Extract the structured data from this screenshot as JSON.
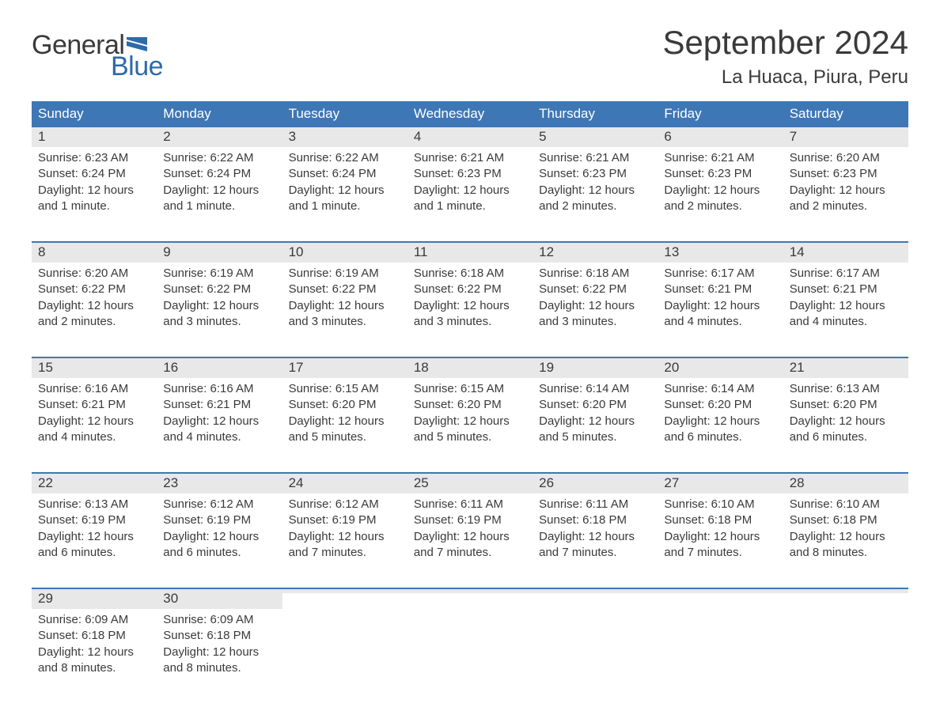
{
  "logo": {
    "part1": "General",
    "part2": "Blue"
  },
  "title": "September 2024",
  "location": "La Huaca, Piura, Peru",
  "colors": {
    "header_bg": "#3e77b5",
    "header_text": "#ffffff",
    "daynum_bg": "#e8e8e8",
    "week_border": "#3e77b5",
    "text": "#3a3a3a",
    "logo_blue": "#2e6aa8",
    "background": "#ffffff"
  },
  "weekdays": [
    "Sunday",
    "Monday",
    "Tuesday",
    "Wednesday",
    "Thursday",
    "Friday",
    "Saturday"
  ],
  "weeks": [
    [
      {
        "n": "1",
        "sr": "Sunrise: 6:23 AM",
        "ss": "Sunset: 6:24 PM",
        "dl1": "Daylight: 12 hours",
        "dl2": "and 1 minute."
      },
      {
        "n": "2",
        "sr": "Sunrise: 6:22 AM",
        "ss": "Sunset: 6:24 PM",
        "dl1": "Daylight: 12 hours",
        "dl2": "and 1 minute."
      },
      {
        "n": "3",
        "sr": "Sunrise: 6:22 AM",
        "ss": "Sunset: 6:24 PM",
        "dl1": "Daylight: 12 hours",
        "dl2": "and 1 minute."
      },
      {
        "n": "4",
        "sr": "Sunrise: 6:21 AM",
        "ss": "Sunset: 6:23 PM",
        "dl1": "Daylight: 12 hours",
        "dl2": "and 1 minute."
      },
      {
        "n": "5",
        "sr": "Sunrise: 6:21 AM",
        "ss": "Sunset: 6:23 PM",
        "dl1": "Daylight: 12 hours",
        "dl2": "and 2 minutes."
      },
      {
        "n": "6",
        "sr": "Sunrise: 6:21 AM",
        "ss": "Sunset: 6:23 PM",
        "dl1": "Daylight: 12 hours",
        "dl2": "and 2 minutes."
      },
      {
        "n": "7",
        "sr": "Sunrise: 6:20 AM",
        "ss": "Sunset: 6:23 PM",
        "dl1": "Daylight: 12 hours",
        "dl2": "and 2 minutes."
      }
    ],
    [
      {
        "n": "8",
        "sr": "Sunrise: 6:20 AM",
        "ss": "Sunset: 6:22 PM",
        "dl1": "Daylight: 12 hours",
        "dl2": "and 2 minutes."
      },
      {
        "n": "9",
        "sr": "Sunrise: 6:19 AM",
        "ss": "Sunset: 6:22 PM",
        "dl1": "Daylight: 12 hours",
        "dl2": "and 3 minutes."
      },
      {
        "n": "10",
        "sr": "Sunrise: 6:19 AM",
        "ss": "Sunset: 6:22 PM",
        "dl1": "Daylight: 12 hours",
        "dl2": "and 3 minutes."
      },
      {
        "n": "11",
        "sr": "Sunrise: 6:18 AM",
        "ss": "Sunset: 6:22 PM",
        "dl1": "Daylight: 12 hours",
        "dl2": "and 3 minutes."
      },
      {
        "n": "12",
        "sr": "Sunrise: 6:18 AM",
        "ss": "Sunset: 6:22 PM",
        "dl1": "Daylight: 12 hours",
        "dl2": "and 3 minutes."
      },
      {
        "n": "13",
        "sr": "Sunrise: 6:17 AM",
        "ss": "Sunset: 6:21 PM",
        "dl1": "Daylight: 12 hours",
        "dl2": "and 4 minutes."
      },
      {
        "n": "14",
        "sr": "Sunrise: 6:17 AM",
        "ss": "Sunset: 6:21 PM",
        "dl1": "Daylight: 12 hours",
        "dl2": "and 4 minutes."
      }
    ],
    [
      {
        "n": "15",
        "sr": "Sunrise: 6:16 AM",
        "ss": "Sunset: 6:21 PM",
        "dl1": "Daylight: 12 hours",
        "dl2": "and 4 minutes."
      },
      {
        "n": "16",
        "sr": "Sunrise: 6:16 AM",
        "ss": "Sunset: 6:21 PM",
        "dl1": "Daylight: 12 hours",
        "dl2": "and 4 minutes."
      },
      {
        "n": "17",
        "sr": "Sunrise: 6:15 AM",
        "ss": "Sunset: 6:20 PM",
        "dl1": "Daylight: 12 hours",
        "dl2": "and 5 minutes."
      },
      {
        "n": "18",
        "sr": "Sunrise: 6:15 AM",
        "ss": "Sunset: 6:20 PM",
        "dl1": "Daylight: 12 hours",
        "dl2": "and 5 minutes."
      },
      {
        "n": "19",
        "sr": "Sunrise: 6:14 AM",
        "ss": "Sunset: 6:20 PM",
        "dl1": "Daylight: 12 hours",
        "dl2": "and 5 minutes."
      },
      {
        "n": "20",
        "sr": "Sunrise: 6:14 AM",
        "ss": "Sunset: 6:20 PM",
        "dl1": "Daylight: 12 hours",
        "dl2": "and 6 minutes."
      },
      {
        "n": "21",
        "sr": "Sunrise: 6:13 AM",
        "ss": "Sunset: 6:20 PM",
        "dl1": "Daylight: 12 hours",
        "dl2": "and 6 minutes."
      }
    ],
    [
      {
        "n": "22",
        "sr": "Sunrise: 6:13 AM",
        "ss": "Sunset: 6:19 PM",
        "dl1": "Daylight: 12 hours",
        "dl2": "and 6 minutes."
      },
      {
        "n": "23",
        "sr": "Sunrise: 6:12 AM",
        "ss": "Sunset: 6:19 PM",
        "dl1": "Daylight: 12 hours",
        "dl2": "and 6 minutes."
      },
      {
        "n": "24",
        "sr": "Sunrise: 6:12 AM",
        "ss": "Sunset: 6:19 PM",
        "dl1": "Daylight: 12 hours",
        "dl2": "and 7 minutes."
      },
      {
        "n": "25",
        "sr": "Sunrise: 6:11 AM",
        "ss": "Sunset: 6:19 PM",
        "dl1": "Daylight: 12 hours",
        "dl2": "and 7 minutes."
      },
      {
        "n": "26",
        "sr": "Sunrise: 6:11 AM",
        "ss": "Sunset: 6:18 PM",
        "dl1": "Daylight: 12 hours",
        "dl2": "and 7 minutes."
      },
      {
        "n": "27",
        "sr": "Sunrise: 6:10 AM",
        "ss": "Sunset: 6:18 PM",
        "dl1": "Daylight: 12 hours",
        "dl2": "and 7 minutes."
      },
      {
        "n": "28",
        "sr": "Sunrise: 6:10 AM",
        "ss": "Sunset: 6:18 PM",
        "dl1": "Daylight: 12 hours",
        "dl2": "and 8 minutes."
      }
    ],
    [
      {
        "n": "29",
        "sr": "Sunrise: 6:09 AM",
        "ss": "Sunset: 6:18 PM",
        "dl1": "Daylight: 12 hours",
        "dl2": "and 8 minutes."
      },
      {
        "n": "30",
        "sr": "Sunrise: 6:09 AM",
        "ss": "Sunset: 6:18 PM",
        "dl1": "Daylight: 12 hours",
        "dl2": "and 8 minutes."
      },
      {
        "empty": true
      },
      {
        "empty": true
      },
      {
        "empty": true
      },
      {
        "empty": true
      },
      {
        "empty": true
      }
    ]
  ]
}
